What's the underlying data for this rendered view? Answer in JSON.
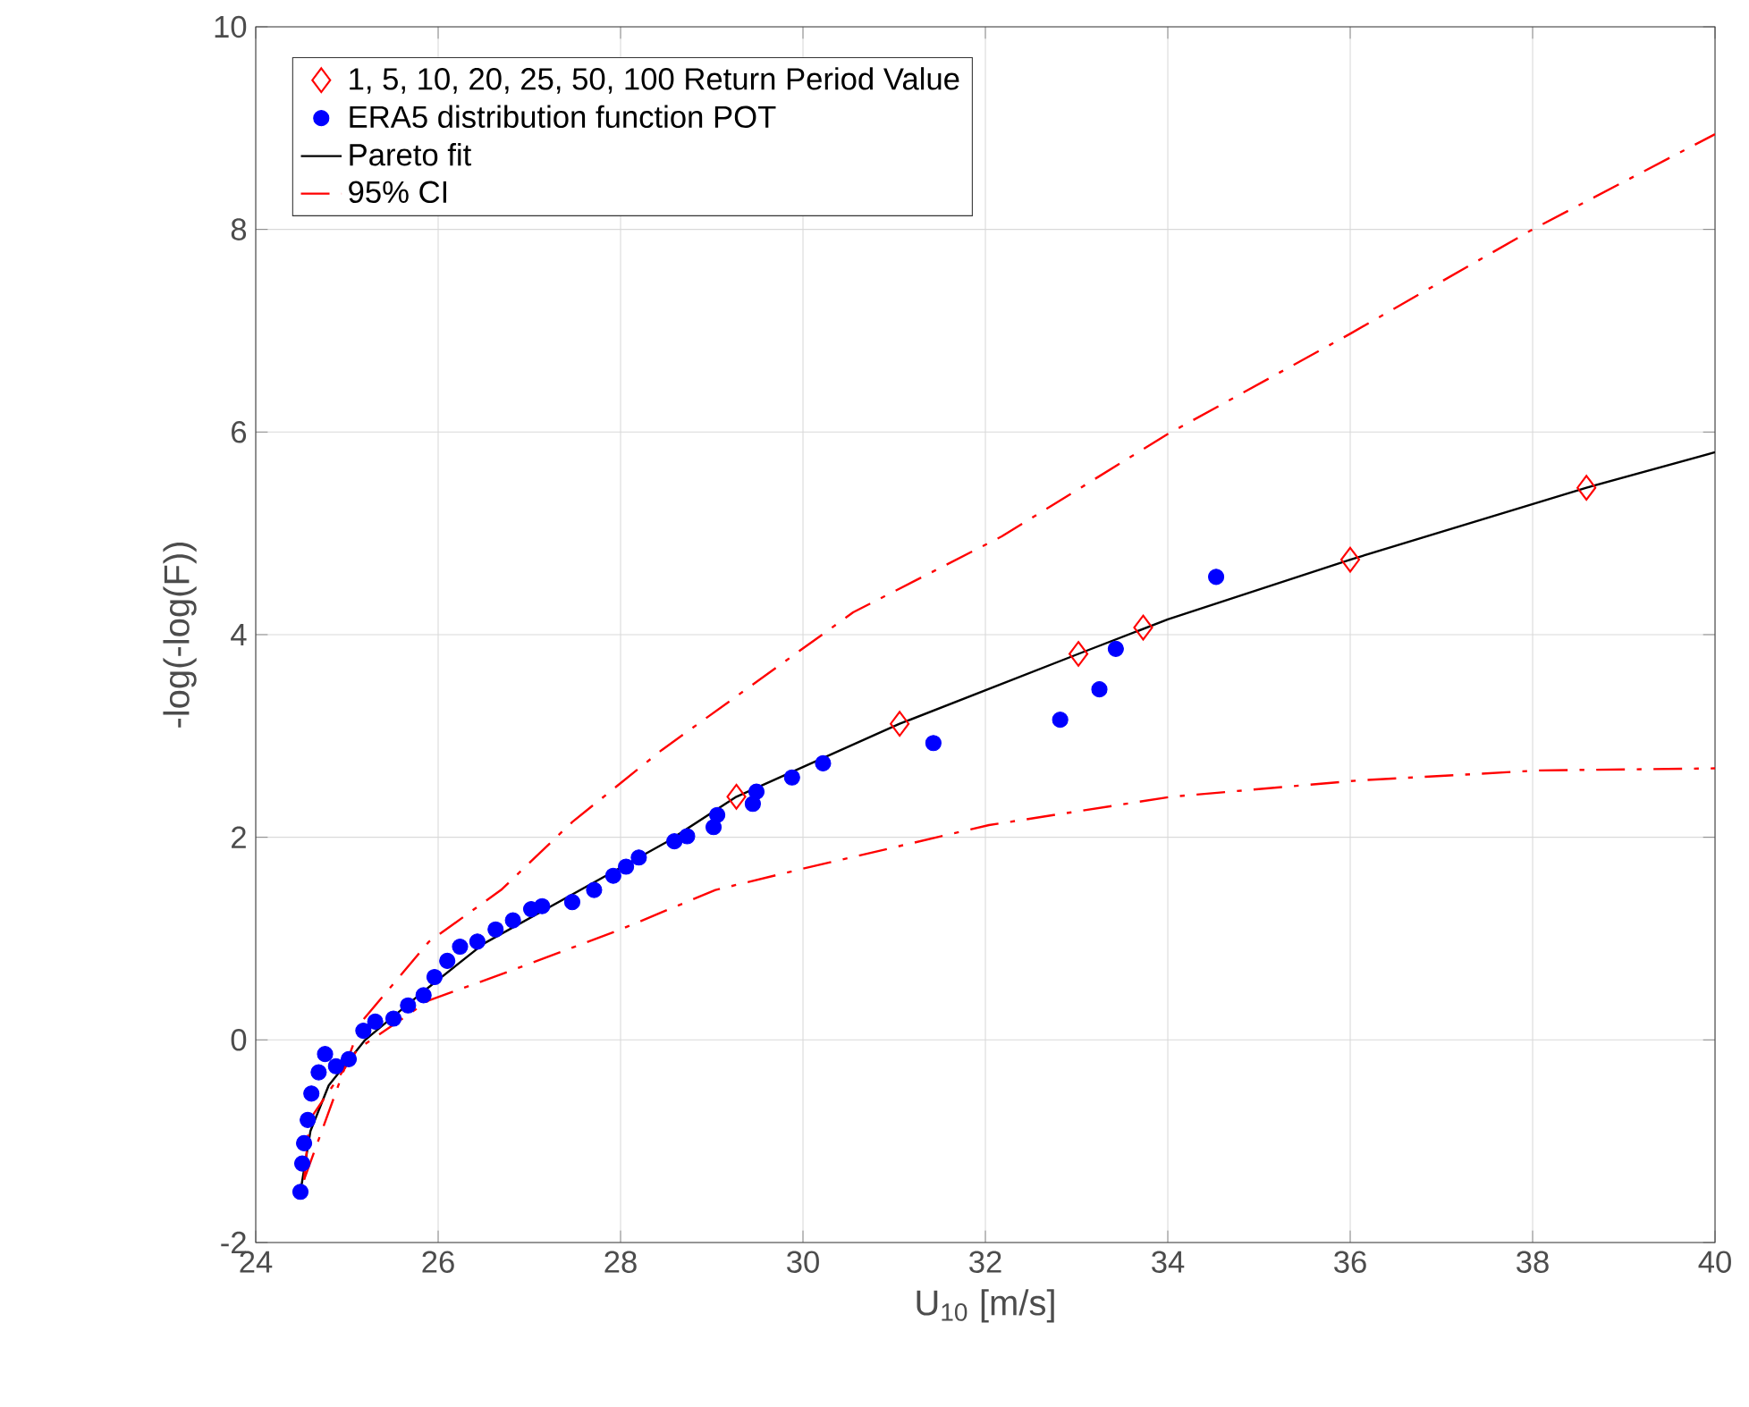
{
  "chart_data": {
    "type": "scatter",
    "xlabel": "U$_{10}$ [m/s]",
    "ylabel": "-log(-log(F))",
    "xlim": [
      24,
      40
    ],
    "xticks": [
      24,
      26,
      28,
      30,
      32,
      34,
      36,
      38,
      40
    ],
    "ylim": [
      -2,
      10
    ],
    "yticks": [
      -2,
      0,
      2,
      4,
      6,
      8,
      10
    ],
    "grid": true,
    "legend": "top left",
    "series": [
      {
        "name": "1, 5, 10, 20, 25, 50, 100 Return Period Value",
        "marker": "diamond",
        "color": "#ff0000",
        "x": [
          29.27,
          31.06,
          33.02,
          33.73,
          36.0,
          38.59
        ],
        "values": [
          2.4,
          3.12,
          3.81,
          4.07,
          4.74,
          5.45
        ]
      },
      {
        "name": "ERA5 distribution function POT",
        "marker": "circle",
        "color": "#0000ff",
        "x": [
          24.49,
          24.51,
          24.53,
          24.57,
          24.61,
          24.69,
          24.76,
          24.88,
          25.02,
          25.18,
          25.31,
          25.51,
          25.67,
          25.84,
          25.96,
          26.1,
          26.24,
          26.43,
          26.63,
          26.82,
          27.02,
          27.14,
          27.47,
          27.71,
          27.92,
          28.06,
          28.2,
          28.59,
          28.73,
          29.02,
          29.06,
          29.45,
          29.49,
          29.88,
          30.22,
          31.43,
          32.82,
          33.25,
          33.43,
          34.53
        ],
        "values": [
          -1.5,
          -1.22,
          -1.02,
          -0.79,
          -0.53,
          -0.32,
          -0.14,
          -0.26,
          -0.19,
          0.09,
          0.18,
          0.21,
          0.34,
          0.44,
          0.62,
          0.78,
          0.92,
          0.97,
          1.09,
          1.18,
          1.29,
          1.32,
          1.36,
          1.48,
          1.62,
          1.71,
          1.8,
          1.96,
          2.01,
          2.1,
          2.22,
          2.33,
          2.45,
          2.59,
          2.73,
          2.93,
          3.16,
          3.46,
          3.86,
          4.57
        ]
      },
      {
        "name": "Pareto fit",
        "type": "line",
        "marker": "none",
        "line_style": "solid",
        "color": "#000000",
        "x": [
          24.49,
          24.6,
          24.8,
          25.2,
          25.8,
          26.5,
          27.5,
          28.5,
          29.27,
          31.06,
          33.02,
          34.0,
          36.0,
          38.59,
          40.0
        ],
        "values": [
          -1.5,
          -0.9,
          -0.45,
          0.0,
          0.45,
          0.95,
          1.45,
          1.95,
          2.4,
          3.12,
          3.81,
          4.15,
          4.74,
          5.45,
          5.8
        ]
      },
      {
        "name": "95% CI",
        "type": "line",
        "marker": "none",
        "line_style": "dashed",
        "color": "#ff0000",
        "x": [
          24.53,
          25.16,
          25.9,
          26.69,
          27.47,
          28.45,
          30.55,
          32.18,
          34.0,
          36.0,
          38.0,
          40.0
        ],
        "values": [
          -1.38,
          0.18,
          0.97,
          1.48,
          2.15,
          2.86,
          4.22,
          4.97,
          5.98,
          6.97,
          8.0,
          8.94
        ]
      },
      {
        "type": "line",
        "marker": "none",
        "line_style": "dashed",
        "color": "#ff0000",
        "x": [
          24.53,
          24.59,
          25.12,
          25.9,
          26.82,
          28.0,
          29.04,
          30.0,
          32.04,
          34.04,
          36.08,
          38.08,
          40.0
        ],
        "values": [
          -1.38,
          -0.79,
          -0.09,
          0.39,
          0.69,
          1.09,
          1.48,
          1.69,
          2.12,
          2.4,
          2.56,
          2.66,
          2.68
        ]
      }
    ]
  }
}
